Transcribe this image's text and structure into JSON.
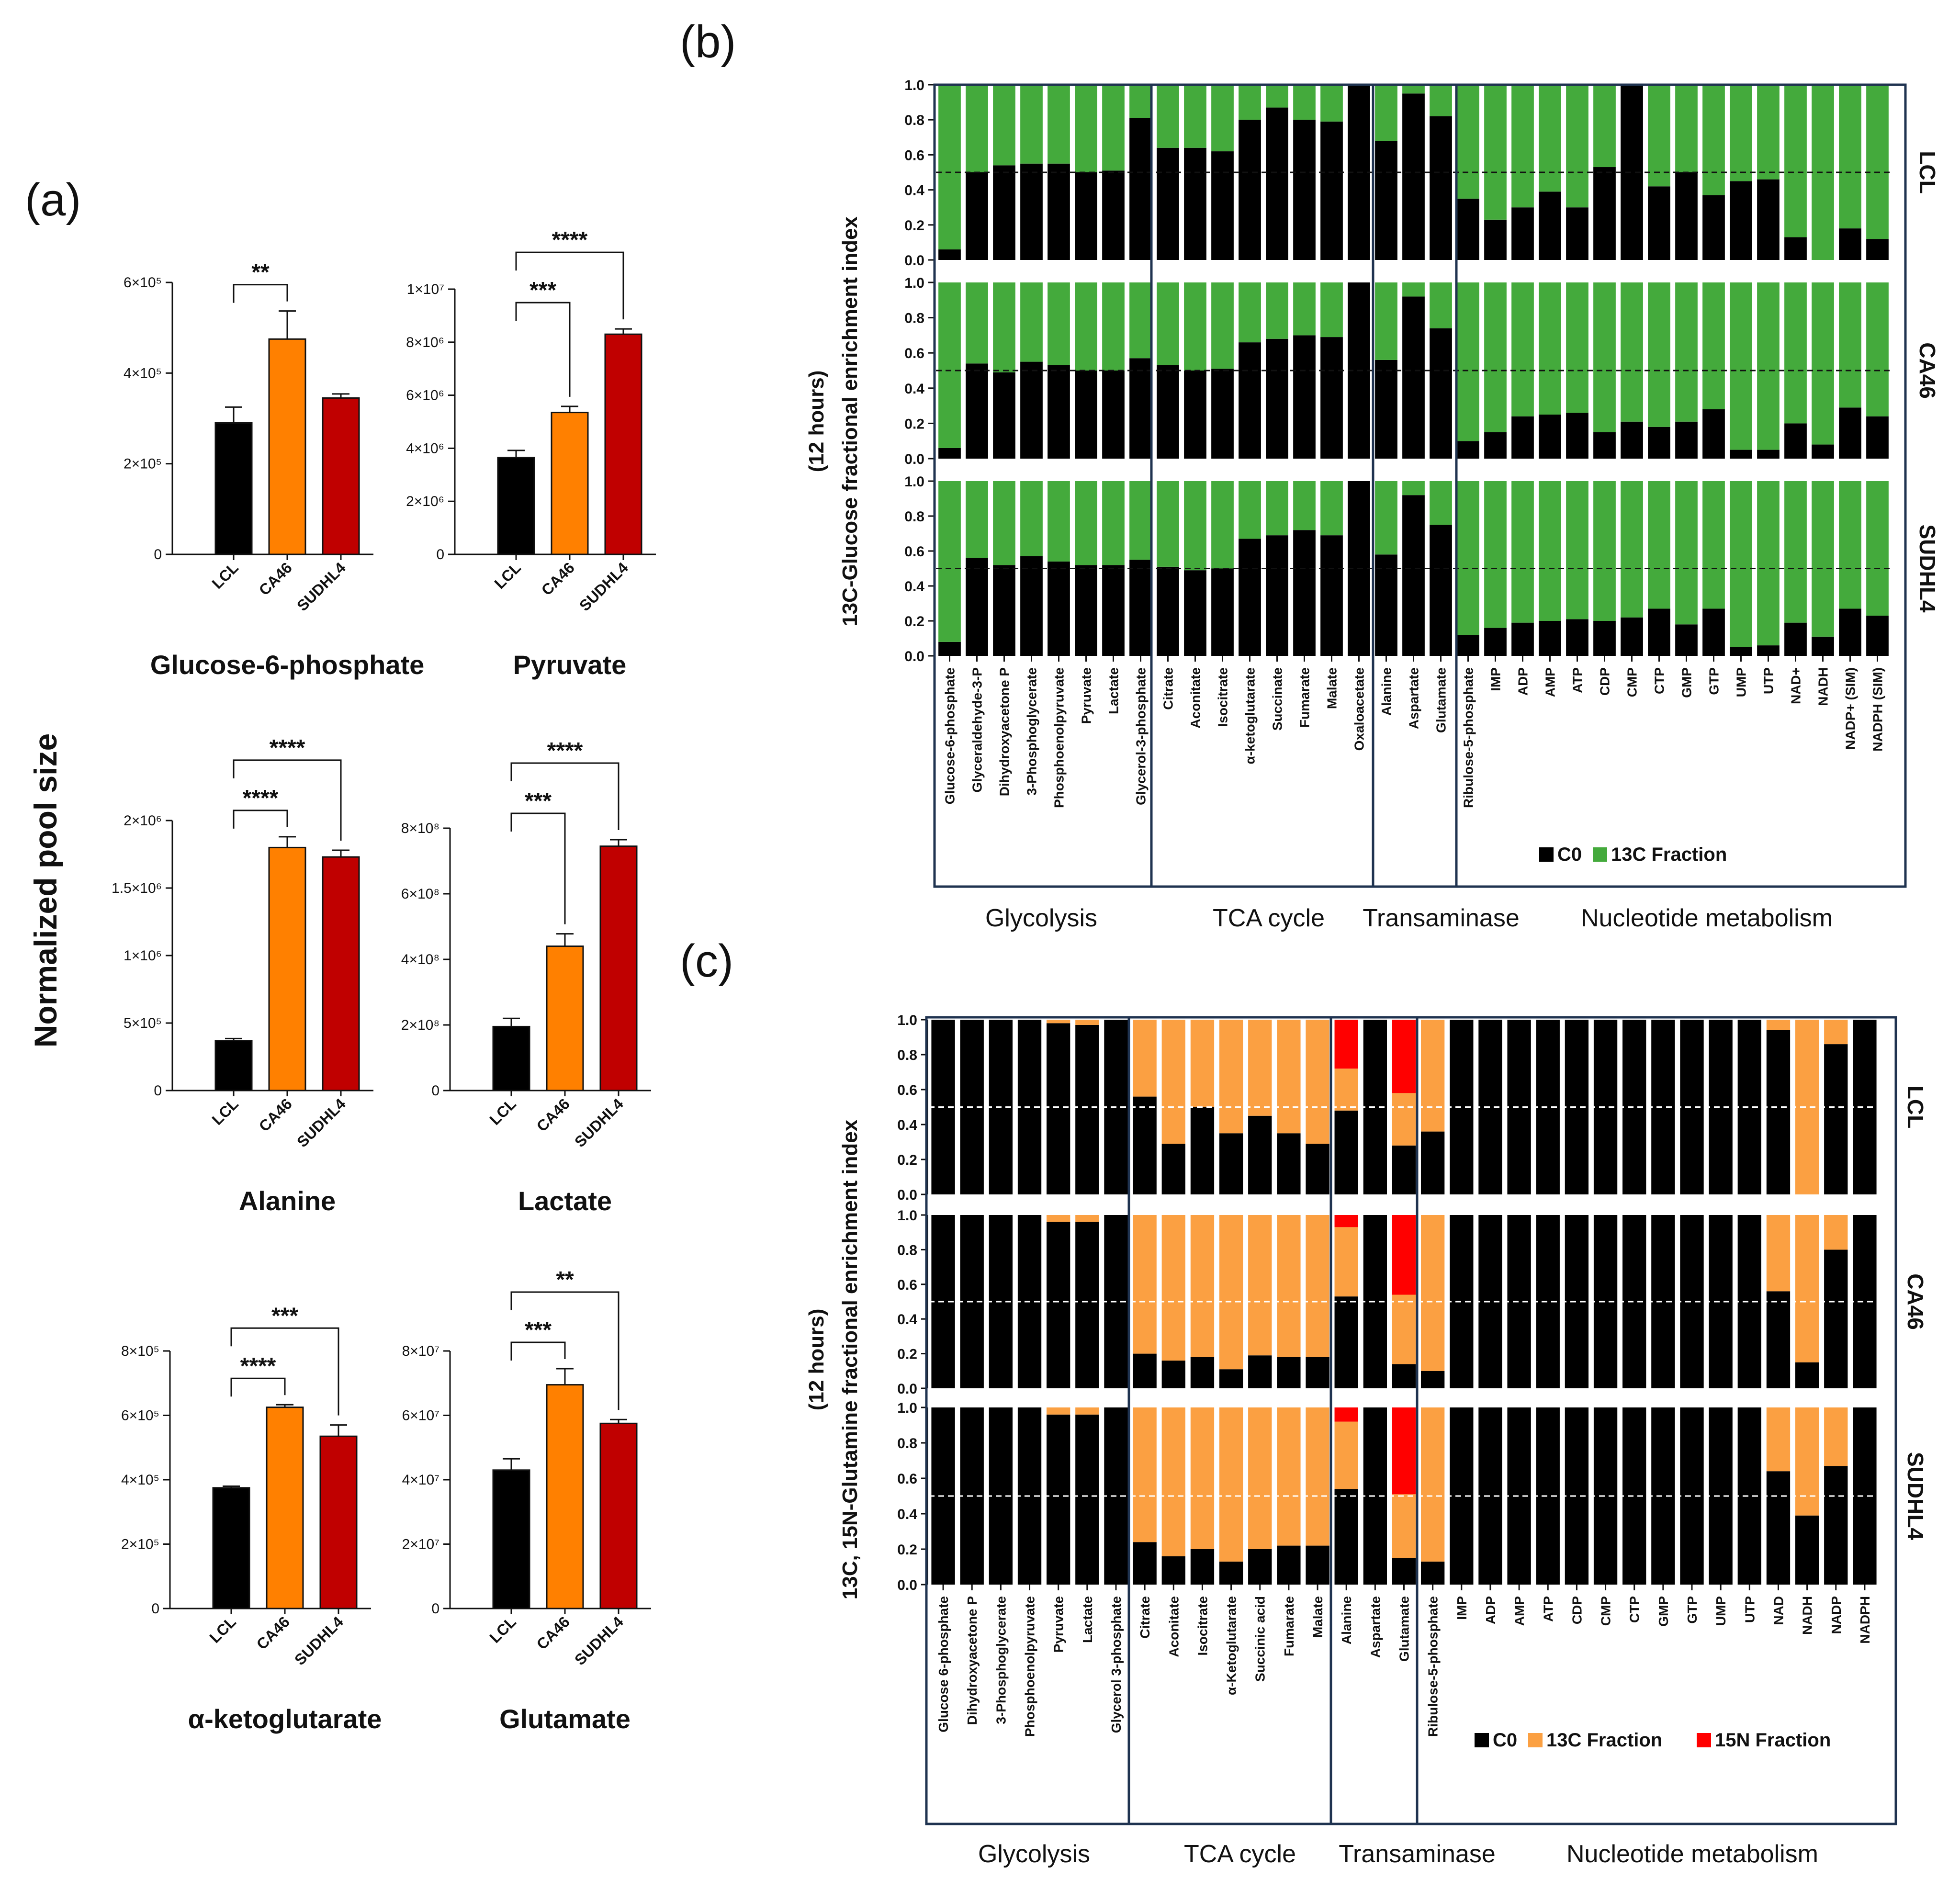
{
  "panel_labels": {
    "a": "(a)",
    "b": "(b)",
    "c": "(c)"
  },
  "panel_a": {
    "ylabel": "Normalized pool size",
    "categories": [
      "LCL",
      "CA46",
      "SUDHL4"
    ],
    "colors": [
      "#000000",
      "#ff8000",
      "#c00000"
    ]
  },
  "panel_b": {
    "ylabel_line1": "(12 hours)",
    "ylabel_line2": "13C-Glucose fractional enrichment index",
    "cells": [
      "LCL",
      "CA46",
      "SUDHL4"
    ],
    "yticks": [
      "0.0",
      "0.2",
      "0.4",
      "0.6",
      "0.8",
      "1.0"
    ],
    "groups": [
      "Glycolysis",
      "TCA cycle",
      "Transaminase",
      "Nucleotide metabolism"
    ],
    "legend": [
      "C0",
      "13C Fraction"
    ]
  },
  "panel_c": {
    "ylabel_line1": "(12 hours)",
    "ylabel_line2": "13C, 15N-Glutamine fractional enrichment index",
    "cells": [
      "LCL",
      "CA46",
      "SUDHL4"
    ],
    "yticks": [
      "0.0",
      "0.2",
      "0.4",
      "0.6",
      "0.8",
      "1.0"
    ],
    "groups": [
      "Glycolysis",
      "TCA cycle",
      "Transaminase",
      "Nucleotide metabolism"
    ],
    "legend": [
      "C0",
      "13C Fraction",
      "15N Fraction"
    ]
  },
  "chart_data": [
    {
      "type": "bar",
      "panel": "a",
      "title": "Glucose-6-phosphate",
      "categories": [
        "LCL",
        "CA46",
        "SUDHL4"
      ],
      "values": [
        290000,
        475000,
        345000
      ],
      "errors": [
        35000,
        62000,
        9000
      ],
      "ylim": [
        0,
        600000
      ],
      "yticks": [
        "0",
        "2×10⁵",
        "4×10⁵",
        "6×10⁵"
      ],
      "significance": [
        {
          "from": "LCL",
          "to": "CA46",
          "label": "**"
        }
      ]
    },
    {
      "type": "bar",
      "panel": "a",
      "title": "Pyruvate",
      "categories": [
        "LCL",
        "CA46",
        "SUDHL4"
      ],
      "values": [
        3650000,
        5350000,
        8300000
      ],
      "errors": [
        270000,
        230000,
        200000
      ],
      "ylim": [
        0,
        10000000
      ],
      "yticks": [
        "0",
        "2×10⁶",
        "4×10⁶",
        "6×10⁶",
        "8×10⁶",
        "1×10⁷"
      ],
      "significance": [
        {
          "from": "LCL",
          "to": "CA46",
          "label": "***"
        },
        {
          "from": "LCL",
          "to": "SUDHL4",
          "label": "****"
        }
      ]
    },
    {
      "type": "bar",
      "panel": "a",
      "title": "Alanine",
      "categories": [
        "LCL",
        "CA46",
        "SUDHL4"
      ],
      "values": [
        370000,
        1800000,
        1730000
      ],
      "errors": [
        15000,
        80000,
        50000
      ],
      "ylim": [
        0,
        2000000
      ],
      "yticks": [
        "0",
        "5×10⁵",
        "1×10⁶",
        "1.5×10⁶",
        "2×10⁶"
      ],
      "significance": [
        {
          "from": "LCL",
          "to": "CA46",
          "label": "****"
        },
        {
          "from": "LCL",
          "to": "SUDHL4",
          "label": "****"
        }
      ]
    },
    {
      "type": "bar",
      "panel": "a",
      "title": "Lactate",
      "categories": [
        "LCL",
        "CA46",
        "SUDHL4"
      ],
      "values": [
        195000000,
        440000000,
        745000000
      ],
      "errors": [
        25000000,
        38000000,
        20000000
      ],
      "ylim": [
        0,
        800000000
      ],
      "yticks": [
        "0",
        "2×10⁸",
        "4×10⁸",
        "6×10⁸",
        "8×10⁸"
      ],
      "significance": [
        {
          "from": "LCL",
          "to": "CA46",
          "label": "***"
        },
        {
          "from": "LCL",
          "to": "SUDHL4",
          "label": "****"
        }
      ]
    },
    {
      "type": "bar",
      "panel": "a",
      "title": "α-ketoglutarate",
      "categories": [
        "LCL",
        "CA46",
        "SUDHL4"
      ],
      "values": [
        375000,
        625000,
        535000
      ],
      "errors": [
        5000,
        8000,
        35000
      ],
      "ylim": [
        0,
        800000
      ],
      "yticks": [
        "0",
        "2×10⁵",
        "4×10⁵",
        "6×10⁵",
        "8×10⁵"
      ],
      "significance": [
        {
          "from": "LCL",
          "to": "CA46",
          "label": "****"
        },
        {
          "from": "LCL",
          "to": "SUDHL4",
          "label": "***"
        }
      ]
    },
    {
      "type": "bar",
      "panel": "a",
      "title": "Glutamate",
      "categories": [
        "LCL",
        "CA46",
        "SUDHL4"
      ],
      "values": [
        43000000,
        69500000,
        57500000
      ],
      "errors": [
        3500000,
        5000000,
        1200000
      ],
      "ylim": [
        0,
        80000000
      ],
      "yticks": [
        "0",
        "2×10⁷",
        "4×10⁷",
        "6×10⁷",
        "8×10⁷"
      ],
      "significance": [
        {
          "from": "LCL",
          "to": "CA46",
          "label": "***"
        },
        {
          "from": "LCL",
          "to": "SUDHL4",
          "label": "**"
        }
      ]
    },
    {
      "type": "bar",
      "panel": "b",
      "stacked": true,
      "ylim": [
        0,
        1
      ],
      "metabolites": [
        "Glucose-6-phosphate",
        "Glyceraldehyde-3-P",
        "Dihydroxyacetone P",
        "3-Phosphoglycerate",
        "Phosphoenolpyruvate",
        "Pyruvate",
        "Lactate",
        "Glycerol-3-phosphate",
        "Citrate",
        "Aconitate",
        "Isocitrate",
        "α-ketoglutarate",
        "Succinate",
        "Fumarate",
        "Malate",
        "Oxaloacetate",
        "Alanine",
        "Aspartate",
        "Glutamate",
        "Ribulose-5-phosphate",
        "IMP",
        "ADP",
        "AMP",
        "ATP",
        "CDP",
        "CMP",
        "CTP",
        "GMP",
        "GTP",
        "UMP",
        "UTP",
        "NAD+",
        "NADH",
        "NADP+ (SIM)",
        "NADPH (SIM)"
      ],
      "series": [
        {
          "cell": "LCL",
          "c0": [
            0.06,
            0.5,
            0.54,
            0.55,
            0.55,
            0.5,
            0.51,
            0.81,
            0.64,
            0.64,
            0.62,
            0.8,
            0.87,
            0.8,
            0.79,
            1.0,
            0.68,
            0.95,
            0.82,
            0.35,
            0.23,
            0.3,
            0.39,
            0.3,
            0.53,
            1.0,
            0.42,
            0.5,
            0.37,
            0.45,
            0.46,
            0.13,
            0.0,
            0.18,
            0.12
          ]
        },
        {
          "cell": "CA46",
          "c0": [
            0.06,
            0.54,
            0.49,
            0.55,
            0.53,
            0.5,
            0.5,
            0.57,
            0.53,
            0.5,
            0.51,
            0.66,
            0.68,
            0.7,
            0.69,
            1.0,
            0.56,
            0.92,
            0.74,
            0.1,
            0.15,
            0.24,
            0.25,
            0.26,
            0.15,
            0.21,
            0.18,
            0.21,
            0.28,
            0.05,
            0.05,
            0.2,
            0.08,
            0.29,
            0.24
          ]
        },
        {
          "cell": "SUDHL4",
          "c0": [
            0.08,
            0.56,
            0.52,
            0.57,
            0.54,
            0.52,
            0.52,
            0.55,
            0.51,
            0.49,
            0.5,
            0.67,
            0.69,
            0.72,
            0.69,
            1.0,
            0.58,
            0.92,
            0.75,
            0.12,
            0.16,
            0.19,
            0.2,
            0.21,
            0.2,
            0.22,
            0.27,
            0.18,
            0.27,
            0.05,
            0.06,
            0.19,
            0.11,
            0.27,
            0.23
          ]
        }
      ]
    },
    {
      "type": "bar",
      "panel": "c",
      "stacked": true,
      "ylim": [
        0,
        1
      ],
      "metabolites": [
        "Glucose 6-phosphate",
        "Dihydroxyacetone P",
        "3-Phosphoglycerate",
        "Phosphoenolpyruvate",
        "Pyruvate",
        "Lactate",
        "Glycerol 3-phosphate",
        "Citrate",
        "Aconitate",
        "Isocitrate",
        "α-Ketoglutarate",
        "Succinic acid",
        "Fumarate",
        "Malate",
        "Alanine",
        "Aspartate",
        "Glutamate",
        "Ribulose-5-phosphate",
        "IMP",
        "ADP",
        "AMP",
        "ATP",
        "CDP",
        "CMP",
        "CTP",
        "GMP",
        "GTP",
        "UMP",
        "UTP",
        "NAD",
        "NADH",
        "NADP",
        "NADPH"
      ],
      "series": [
        {
          "cell": "LCL",
          "c0": [
            1.0,
            1.0,
            1.0,
            1.0,
            0.98,
            0.97,
            1.0,
            0.56,
            0.29,
            0.5,
            0.35,
            0.45,
            0.35,
            0.29,
            0.48,
            1.0,
            0.28,
            0.36,
            1.0,
            1.0,
            1.0,
            1.0,
            1.0,
            1.0,
            1.0,
            1.0,
            1.0,
            1.0,
            1.0,
            0.94,
            0.0,
            0.86,
            1.0
          ],
          "c13": [
            0.0,
            0.0,
            0.0,
            0.0,
            0.02,
            0.03,
            0.0,
            0.44,
            0.71,
            0.5,
            0.65,
            0.55,
            0.65,
            0.71,
            0.24,
            0.0,
            0.3,
            0.64,
            0.0,
            0.0,
            0.0,
            0.0,
            0.0,
            0.0,
            0.0,
            0.0,
            0.0,
            0.0,
            0.0,
            0.06,
            1.0,
            0.14,
            0.0
          ],
          "n15": [
            0,
            0,
            0,
            0,
            0,
            0,
            0,
            0,
            0,
            0,
            0,
            0,
            0,
            0,
            0.28,
            0,
            0.42,
            0,
            0,
            0,
            0,
            0,
            0,
            0,
            0,
            0,
            0,
            0,
            0,
            0,
            0,
            0,
            0
          ]
        },
        {
          "cell": "CA46",
          "c0": [
            1.0,
            1.0,
            1.0,
            1.0,
            0.96,
            0.96,
            1.0,
            0.2,
            0.16,
            0.18,
            0.11,
            0.19,
            0.18,
            0.18,
            0.53,
            1.0,
            0.14,
            0.1,
            1.0,
            1.0,
            1.0,
            1.0,
            1.0,
            1.0,
            1.0,
            1.0,
            1.0,
            1.0,
            1.0,
            0.56,
            0.15,
            0.8,
            1.0
          ],
          "c13": [
            0.0,
            0.0,
            0.0,
            0.0,
            0.04,
            0.04,
            0.0,
            0.8,
            0.84,
            0.82,
            0.89,
            0.81,
            0.82,
            0.82,
            0.4,
            0.0,
            0.4,
            0.9,
            0.0,
            0.0,
            0.0,
            0.0,
            0.0,
            0.0,
            0.0,
            0.0,
            0.0,
            0.0,
            0.0,
            0.44,
            0.85,
            0.2,
            0.0
          ],
          "n15": [
            0,
            0,
            0,
            0,
            0,
            0,
            0,
            0,
            0,
            0,
            0,
            0,
            0,
            0,
            0.07,
            0,
            0.46,
            0,
            0,
            0,
            0,
            0,
            0,
            0,
            0,
            0,
            0,
            0,
            0,
            0,
            0,
            0,
            0
          ]
        },
        {
          "cell": "SUDHL4",
          "c0": [
            1.0,
            1.0,
            1.0,
            1.0,
            0.96,
            0.96,
            1.0,
            0.24,
            0.16,
            0.2,
            0.13,
            0.2,
            0.22,
            0.22,
            0.54,
            1.0,
            0.15,
            0.13,
            1.0,
            1.0,
            1.0,
            1.0,
            1.0,
            1.0,
            1.0,
            1.0,
            1.0,
            1.0,
            1.0,
            0.64,
            0.39,
            0.67,
            1.0
          ],
          "c13": [
            0.0,
            0.0,
            0.0,
            0.0,
            0.04,
            0.04,
            0.0,
            0.76,
            0.84,
            0.8,
            0.87,
            0.8,
            0.78,
            0.78,
            0.38,
            0.0,
            0.36,
            0.87,
            0.0,
            0.0,
            0.0,
            0.0,
            0.0,
            0.0,
            0.0,
            0.0,
            0.0,
            0.0,
            0.0,
            0.36,
            0.61,
            0.33,
            0.0
          ],
          "n15": [
            0,
            0,
            0,
            0,
            0,
            0,
            0,
            0,
            0,
            0,
            0,
            0,
            0,
            0,
            0.08,
            0,
            0.49,
            0,
            0,
            0,
            0,
            0,
            0,
            0,
            0,
            0,
            0,
            0,
            0,
            0,
            0,
            0,
            0
          ]
        }
      ]
    }
  ],
  "colors": {
    "c0": "#000000",
    "c13_b": "#44aa3c",
    "c13_c": "#fba042",
    "n15": "#ff0000",
    "frame": "#1f3350"
  }
}
